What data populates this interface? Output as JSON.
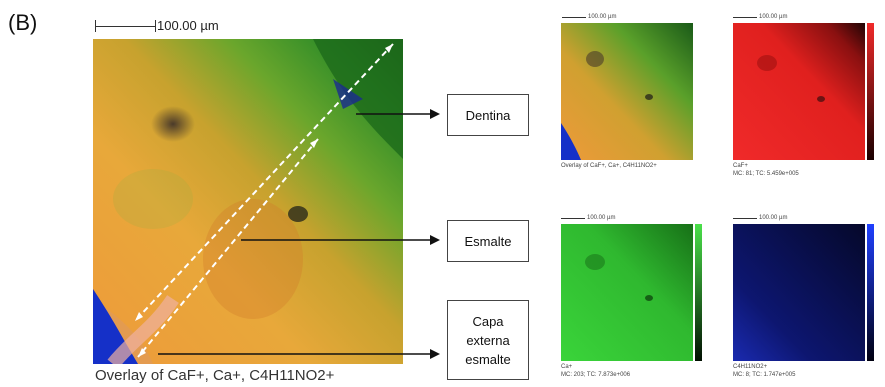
{
  "panel_label": "(B)",
  "main": {
    "scale_label": "100.00 µm",
    "caption": "Overlay of CaF+, Ca+, C4H11NO2+"
  },
  "labels": {
    "dentina": "Dentina",
    "esmalte": "Esmalte",
    "capa_line1": "Capa",
    "capa_line2": "externa",
    "capa_line3": "esmalte"
  },
  "thumbs": {
    "scale_label": "100.00 µm",
    "overlay": {
      "caption": "Overlay of CaF+, Ca+, C4H11NO2+"
    },
    "caf": {
      "name": "CaF+",
      "stats": "MC:    81; TC: 5.459e+005"
    },
    "ca": {
      "name": "Ca+",
      "stats": "MC:   203; TC: 7.873e+006"
    },
    "c4": {
      "name": "C4H11NO2+",
      "stats": "MC:    8; TC: 1.747e+005"
    }
  },
  "colors": {
    "red": "#e8202a",
    "green": "#36c83a",
    "blue": "#0c1270",
    "orange": "#f0a030"
  }
}
